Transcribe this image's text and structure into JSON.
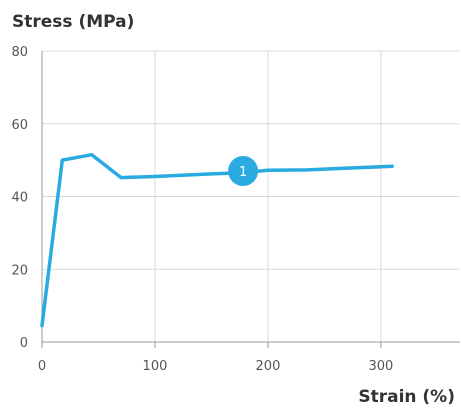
{
  "chart_data": {
    "type": "line",
    "ylabel": "Stress (MPa)",
    "xlabel": "Strain (%)",
    "xlim": [
      0,
      370
    ],
    "ylim": [
      0,
      80
    ],
    "x_ticks": [
      0,
      100,
      200,
      300
    ],
    "y_ticks": [
      0,
      20,
      40,
      60,
      80
    ],
    "grid": true,
    "series": [
      {
        "color": "#29abe2",
        "points": [
          [
            0,
            4.5
          ],
          [
            18,
            50
          ],
          [
            44,
            51.5
          ],
          [
            70,
            45.2
          ],
          [
            100,
            45.5
          ],
          [
            150,
            46.2
          ],
          [
            175,
            46.5
          ],
          [
            200,
            47.2
          ],
          [
            235,
            47.3
          ],
          [
            270,
            47.8
          ],
          [
            310,
            48.3
          ]
        ]
      }
    ],
    "annotations": [
      {
        "label": "1",
        "x": 178,
        "y": 47.0,
        "color": "#29abe2"
      }
    ]
  }
}
